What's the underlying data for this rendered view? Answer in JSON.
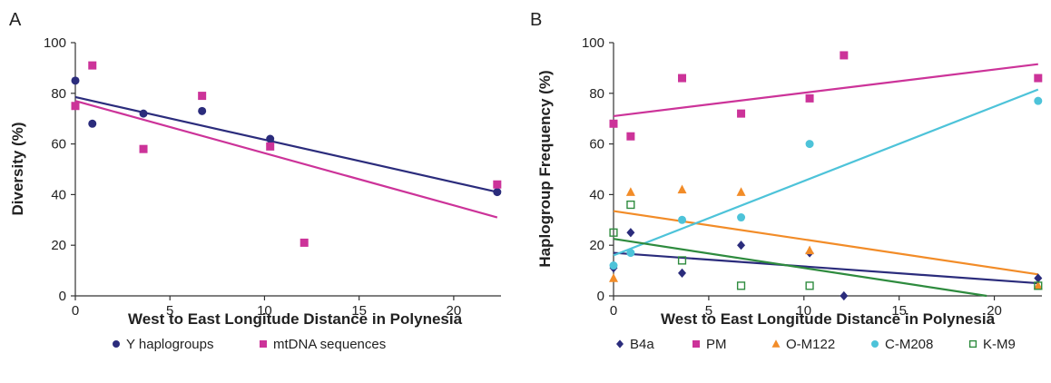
{
  "chart_data": [
    {
      "panel_label": "A",
      "type": "scatter",
      "xlabel": "West to East Longitude Distance in Polynesia",
      "ylabel": "Diversity (%)",
      "xlim": [
        0,
        22.5
      ],
      "ylim": [
        0,
        100
      ],
      "xticks": [
        0,
        5,
        10,
        15,
        20
      ],
      "yticks": [
        0,
        20,
        40,
        60,
        80,
        100
      ],
      "grid": false,
      "legend_position": "bottom",
      "series": [
        {
          "name": "Y haplogroups",
          "marker": "circle",
          "color": "#2b2c7c",
          "points": [
            [
              0,
              85
            ],
            [
              0.9,
              68
            ],
            [
              3.6,
              72
            ],
            [
              6.7,
              73
            ],
            [
              10.3,
              62
            ],
            [
              22.3,
              41
            ]
          ],
          "trendline": [
            [
              0,
              78.5
            ],
            [
              22.3,
              41
            ]
          ]
        },
        {
          "name": "mtDNA sequences",
          "marker": "square",
          "color": "#cc3399",
          "points": [
            [
              0,
              75
            ],
            [
              0.9,
              91
            ],
            [
              3.6,
              58
            ],
            [
              6.7,
              79
            ],
            [
              10.3,
              59
            ],
            [
              12.1,
              21
            ],
            [
              22.3,
              44
            ]
          ],
          "trendline": [
            [
              0,
              77
            ],
            [
              22.3,
              31
            ]
          ]
        }
      ]
    },
    {
      "panel_label": "B",
      "type": "scatter",
      "xlabel": "West to East Longitude Distance in Polynesia",
      "ylabel": "Haplogroup Frequency (%)",
      "xlim": [
        0,
        22.5
      ],
      "ylim": [
        0,
        100
      ],
      "xticks": [
        0,
        5,
        10,
        15,
        20
      ],
      "yticks": [
        0,
        20,
        40,
        60,
        80,
        100
      ],
      "grid": false,
      "legend_position": "bottom",
      "series": [
        {
          "name": "B4a",
          "marker": "diamond",
          "color": "#2b2c7c",
          "points": [
            [
              0,
              11
            ],
            [
              0.9,
              25
            ],
            [
              3.6,
              9
            ],
            [
              6.7,
              20
            ],
            [
              10.3,
              17
            ],
            [
              12.1,
              0
            ],
            [
              22.3,
              7
            ]
          ],
          "trendline": [
            [
              0,
              17
            ],
            [
              22.3,
              5
            ]
          ]
        },
        {
          "name": "PM",
          "marker": "square",
          "color": "#cc3399",
          "points": [
            [
              0,
              68
            ],
            [
              0.9,
              63
            ],
            [
              3.6,
              86
            ],
            [
              6.7,
              72
            ],
            [
              10.3,
              78
            ],
            [
              12.1,
              95
            ],
            [
              22.3,
              86
            ]
          ],
          "trendline": [
            [
              0,
              71
            ],
            [
              22.3,
              91.5
            ]
          ]
        },
        {
          "name": "O-M122",
          "marker": "triangle",
          "color": "#f28c28",
          "points": [
            [
              0,
              7
            ],
            [
              0.9,
              41
            ],
            [
              3.6,
              42
            ],
            [
              6.7,
              41
            ],
            [
              10.3,
              18
            ],
            [
              22.3,
              4
            ]
          ],
          "trendline": [
            [
              0,
              33.5
            ],
            [
              22.3,
              8.5
            ]
          ]
        },
        {
          "name": "C-M208",
          "marker": "circle",
          "color": "#4dc3d9",
          "points": [
            [
              0,
              12
            ],
            [
              0.9,
              17
            ],
            [
              3.6,
              30
            ],
            [
              6.7,
              31
            ],
            [
              10.3,
              60
            ],
            [
              22.3,
              77
            ]
          ],
          "trendline": [
            [
              0,
              16
            ],
            [
              22.3,
              81.5
            ]
          ]
        },
        {
          "name": "K-M9",
          "marker": "open-square",
          "color": "#2e8b3e",
          "points": [
            [
              0,
              25
            ],
            [
              0.9,
              36
            ],
            [
              3.6,
              14
            ],
            [
              6.7,
              4
            ],
            [
              10.3,
              4
            ],
            [
              22.3,
              4
            ]
          ],
          "trendline": [
            [
              0,
              22.5
            ],
            [
              19.6,
              0
            ]
          ]
        }
      ]
    }
  ]
}
